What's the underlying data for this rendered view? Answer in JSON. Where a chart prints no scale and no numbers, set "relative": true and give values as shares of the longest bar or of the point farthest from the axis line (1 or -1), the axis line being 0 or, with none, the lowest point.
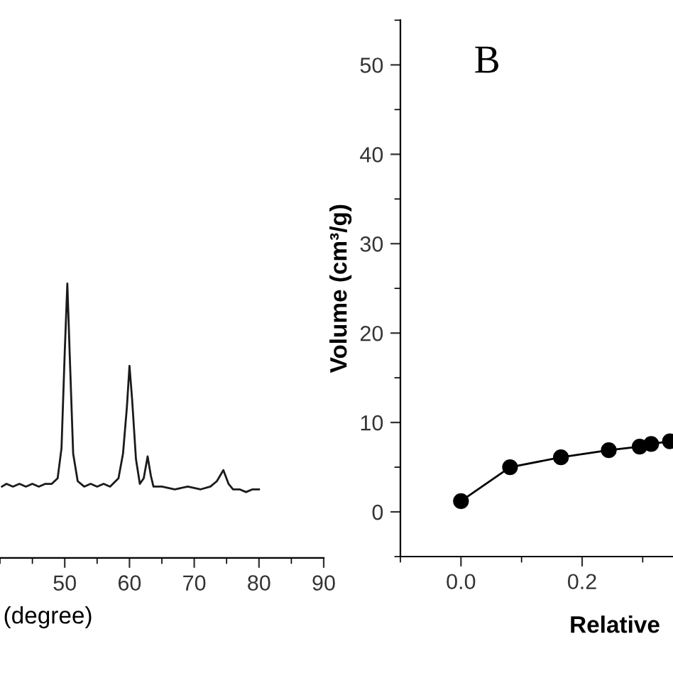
{
  "chart_data": [
    {
      "type": "line",
      "relative": true,
      "xlabel": "(degree)",
      "xlim": [
        40,
        90
      ],
      "xticks": [
        50,
        60,
        70,
        80,
        90
      ],
      "tick_labels": "x",
      "grid": false,
      "legend": false,
      "marker": "none",
      "x": [
        40.3,
        41,
        42,
        43,
        44,
        45,
        46,
        47,
        48,
        48.9,
        49.5,
        50,
        50.4,
        50.8,
        51.3,
        52,
        53,
        54,
        55,
        56,
        57,
        58.3,
        59,
        59.6,
        60,
        60.4,
        61,
        61.6,
        62.2,
        62.8,
        63.3,
        63.7,
        65,
        67,
        69,
        71,
        72.5,
        73.5,
        74.5,
        75.3,
        76,
        77,
        78,
        79,
        80
      ],
      "series": [
        {
          "color": "#1a1a1a",
          "values": [
            0.26,
            0.27,
            0.26,
            0.27,
            0.26,
            0.27,
            0.26,
            0.27,
            0.27,
            0.29,
            0.4,
            0.75,
            1,
            0.72,
            0.38,
            0.28,
            0.26,
            0.27,
            0.26,
            0.27,
            0.26,
            0.29,
            0.38,
            0.55,
            0.7,
            0.58,
            0.36,
            0.27,
            0.29,
            0.37,
            0.3,
            0.26,
            0.26,
            0.25,
            0.26,
            0.25,
            0.26,
            0.28,
            0.32,
            0.27,
            0.25,
            0.25,
            0.24,
            0.25,
            0.25
          ]
        }
      ]
    },
    {
      "type": "line",
      "ylabel": "Volume (cm³/g)",
      "xlabel": "Relative",
      "annotations": [
        "B"
      ],
      "xlim": [
        -0.1,
        0.35
      ],
      "xticks": [
        {
          "value": 0,
          "label": "0.0"
        },
        {
          "value": 0.2,
          "label": "0.2"
        }
      ],
      "ylim": [
        -5,
        55
      ],
      "yticks": [
        0,
        10,
        20,
        30,
        40,
        50
      ],
      "grid": false,
      "legend": false,
      "marker": "circle",
      "line_style": "solid",
      "x": [
        0.0,
        0.081,
        0.165,
        0.244,
        0.295,
        0.314,
        0.345
      ],
      "series": [
        {
          "color": "#000000",
          "values": [
            1.2,
            5.0,
            6.1,
            6.9,
            7.3,
            7.6,
            7.9
          ]
        }
      ]
    }
  ]
}
